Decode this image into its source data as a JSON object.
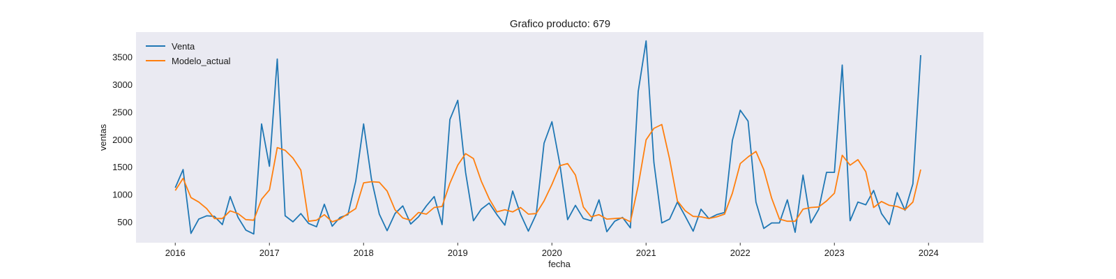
{
  "chart_data": {
    "type": "line",
    "title": "Grafico producto: 679",
    "xlabel": "fecha",
    "ylabel": "ventas",
    "x_start": "2016-01",
    "x_frequency": "monthly",
    "xlim": [
      "2015-08",
      "2024-08"
    ],
    "ylim": [
      120,
      3950
    ],
    "x_ticks": [
      {
        "date": "2016-01",
        "label": "2016"
      },
      {
        "date": "2017-01",
        "label": "2017"
      },
      {
        "date": "2018-01",
        "label": "2018"
      },
      {
        "date": "2019-01",
        "label": "2019"
      },
      {
        "date": "2020-01",
        "label": "2020"
      },
      {
        "date": "2021-01",
        "label": "2021"
      },
      {
        "date": "2022-01",
        "label": "2022"
      },
      {
        "date": "2023-01",
        "label": "2023"
      },
      {
        "date": "2024-01",
        "label": "2024"
      }
    ],
    "y_ticks": [
      500,
      1000,
      1500,
      2000,
      2500,
      3000,
      3500
    ],
    "grid": false,
    "legend": "top-left",
    "series": [
      {
        "name": "Venta",
        "color": "#1f77b4",
        "values": [
          1120,
          1450,
          290,
          550,
          610,
          600,
          450,
          960,
          580,
          350,
          280,
          2280,
          1510,
          3460,
          610,
          500,
          650,
          470,
          410,
          820,
          420,
          580,
          630,
          1240,
          2280,
          1280,
          640,
          340,
          650,
          790,
          460,
          590,
          790,
          960,
          450,
          2360,
          2710,
          1400,
          520,
          730,
          840,
          630,
          440,
          1060,
          640,
          330,
          640,
          1930,
          2320,
          1560,
          540,
          800,
          560,
          520,
          900,
          320,
          510,
          580,
          390,
          2870,
          3790,
          1580,
          480,
          550,
          860,
          600,
          330,
          730,
          560,
          630,
          670,
          1980,
          2530,
          2330,
          860,
          380,
          480,
          480,
          900,
          310,
          1350,
          480,
          730,
          1400,
          1400,
          3350,
          520,
          860,
          810,
          1070,
          650,
          450,
          1030,
          710,
          1190,
          3530
        ]
      },
      {
        "name": "Modelo_actual",
        "color": "#ff7f0e",
        "values": [
          1070,
          1290,
          940,
          860,
          740,
          560,
          560,
          700,
          650,
          540,
          530,
          910,
          1080,
          1850,
          1800,
          1660,
          1440,
          510,
          530,
          630,
          500,
          550,
          650,
          740,
          1210,
          1230,
          1220,
          1060,
          720,
          570,
          530,
          670,
          640,
          760,
          780,
          1200,
          1530,
          1740,
          1650,
          1240,
          920,
          680,
          720,
          680,
          760,
          640,
          650,
          880,
          1180,
          1520,
          1560,
          1350,
          770,
          590,
          630,
          550,
          560,
          570,
          500,
          1160,
          1990,
          2200,
          2270,
          1640,
          880,
          700,
          600,
          590,
          560,
          590,
          640,
          1020,
          1560,
          1680,
          1780,
          1450,
          930,
          550,
          510,
          510,
          730,
          760,
          770,
          880,
          1020,
          1710,
          1530,
          1630,
          1410,
          760,
          870,
          800,
          780,
          720,
          860,
          1450
        ]
      }
    ]
  }
}
